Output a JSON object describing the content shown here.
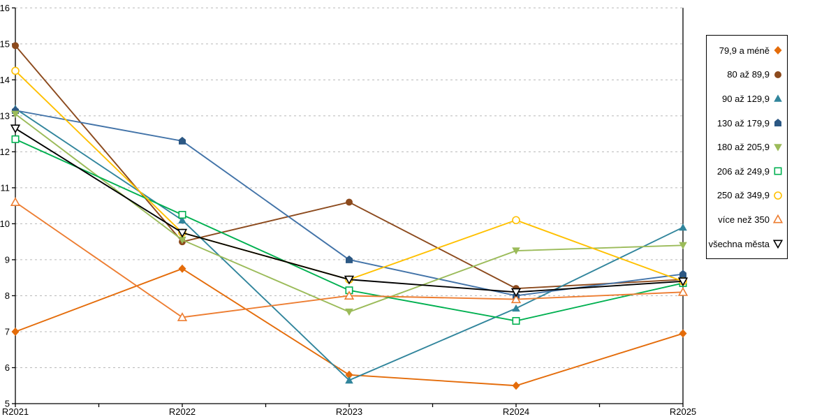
{
  "chart_data": {
    "type": "line",
    "title": "",
    "xlabel": "",
    "ylabel": "",
    "categories": [
      "R2021",
      "R2022",
      "R2023",
      "R2024",
      "R2025"
    ],
    "series": [
      {
        "name": "79,9 a méně",
        "color": "#E46C0A",
        "marker": "diamond",
        "fill": "solid",
        "values": [
          7.0,
          8.75,
          5.8,
          5.5,
          6.95
        ]
      },
      {
        "name": "80 až 89,9",
        "color": "#8C4A1D",
        "marker": "circle",
        "fill": "solid",
        "values": [
          14.95,
          9.5,
          10.6,
          8.2,
          8.45
        ]
      },
      {
        "name": "90 až 129,9",
        "color": "#31859C",
        "marker": "triangle",
        "fill": "solid",
        "values": [
          13.2,
          10.1,
          5.65,
          7.65,
          9.9
        ]
      },
      {
        "name": "130 až 179,9",
        "color": "#4273A8",
        "marker_color": "#2C5884",
        "marker": "pentagon",
        "fill": "solid",
        "values": [
          13.15,
          12.3,
          9.0,
          8.0,
          8.6
        ]
      },
      {
        "name": "180 až 205,9",
        "color": "#9BBB59",
        "marker": "triangle-down",
        "fill": "solid",
        "values": [
          13.05,
          9.55,
          7.55,
          9.25,
          9.4
        ]
      },
      {
        "name": "206 až 249,9",
        "color": "#00B050",
        "marker": "square",
        "fill": "outline",
        "values": [
          12.35,
          10.25,
          8.15,
          7.3,
          8.35
        ]
      },
      {
        "name": "250 až 349,9",
        "color": "#FFC000",
        "marker": "circle",
        "fill": "outline",
        "values": [
          14.25,
          9.75,
          8.45,
          10.1,
          8.4
        ]
      },
      {
        "name": "více než 350",
        "color": "#ED7D31",
        "marker": "triangle",
        "fill": "outline",
        "values": [
          10.6,
          7.4,
          8.0,
          7.9,
          8.1
        ]
      },
      {
        "name": "všechna města",
        "color": "#000000",
        "marker": "triangle-down",
        "fill": "outline",
        "values": [
          12.65,
          9.75,
          8.45,
          8.1,
          8.4
        ]
      }
    ],
    "ylim": [
      5,
      16
    ],
    "yticks": [
      5,
      6,
      7,
      8,
      9,
      10,
      11,
      12,
      13,
      14,
      15,
      16
    ],
    "grid": "horizontal-dashed",
    "grid_color": "#B8B8B8",
    "axis_color": "#000000",
    "legend_position": "right"
  }
}
